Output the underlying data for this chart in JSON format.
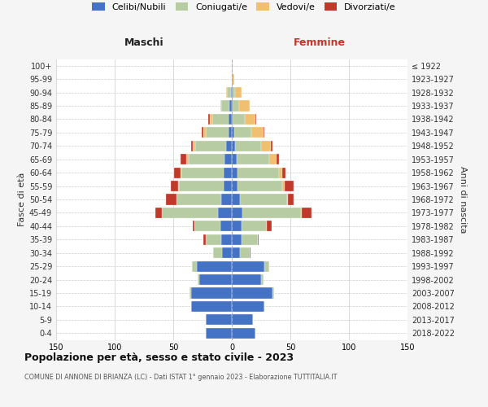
{
  "age_groups": [
    "0-4",
    "5-9",
    "10-14",
    "15-19",
    "20-24",
    "25-29",
    "30-34",
    "35-39",
    "40-44",
    "45-49",
    "50-54",
    "55-59",
    "60-64",
    "65-69",
    "70-74",
    "75-79",
    "80-84",
    "85-89",
    "90-94",
    "95-99",
    "100+"
  ],
  "birth_years": [
    "2018-2022",
    "2013-2017",
    "2008-2012",
    "2003-2007",
    "1998-2002",
    "1993-1997",
    "1988-1992",
    "1983-1987",
    "1978-1982",
    "1973-1977",
    "1968-1972",
    "1963-1967",
    "1958-1962",
    "1953-1957",
    "1948-1952",
    "1943-1947",
    "1938-1942",
    "1933-1937",
    "1928-1932",
    "1923-1927",
    "≤ 1922"
  ],
  "colors": {
    "single": "#4472c4",
    "married": "#b8cca4",
    "widowed": "#f0c070",
    "divorced": "#c0392b"
  },
  "male": {
    "single": [
      22,
      22,
      35,
      35,
      28,
      30,
      8,
      9,
      10,
      12,
      9,
      7,
      7,
      6,
      5,
      3,
      3,
      2,
      1,
      0,
      0
    ],
    "married": [
      0,
      0,
      0,
      1,
      1,
      4,
      8,
      13,
      22,
      48,
      38,
      38,
      36,
      31,
      26,
      19,
      14,
      7,
      3,
      0,
      0
    ],
    "widowed": [
      0,
      0,
      0,
      0,
      0,
      0,
      0,
      0,
      0,
      0,
      0,
      1,
      1,
      2,
      2,
      2,
      2,
      1,
      1,
      0,
      0
    ],
    "divorced": [
      0,
      0,
      0,
      0,
      0,
      0,
      0,
      2,
      1,
      5,
      9,
      6,
      5,
      5,
      2,
      2,
      1,
      0,
      0,
      0,
      0
    ]
  },
  "female": {
    "single": [
      20,
      18,
      28,
      35,
      25,
      28,
      7,
      8,
      8,
      9,
      7,
      5,
      5,
      4,
      3,
      2,
      1,
      1,
      1,
      0,
      0
    ],
    "married": [
      0,
      0,
      0,
      1,
      2,
      4,
      8,
      14,
      22,
      50,
      40,
      38,
      35,
      28,
      22,
      15,
      10,
      5,
      2,
      0,
      0
    ],
    "widowed": [
      0,
      0,
      0,
      0,
      0,
      0,
      0,
      0,
      0,
      1,
      1,
      2,
      3,
      6,
      8,
      10,
      9,
      9,
      5,
      2,
      1
    ],
    "divorced": [
      0,
      0,
      0,
      0,
      0,
      0,
      1,
      1,
      4,
      8,
      5,
      8,
      3,
      2,
      2,
      1,
      1,
      0,
      0,
      0,
      0
    ]
  },
  "xlim": 150,
  "title": "Popolazione per età, sesso e stato civile - 2023",
  "subtitle": "COMUNE DI ANNONE DI BRIANZA (LC) - Dati ISTAT 1° gennaio 2023 - Elaborazione TUTTITALIA.IT",
  "xlabel_left": "Maschi",
  "xlabel_right": "Femmine",
  "ylabel_left": "Fasce di età",
  "ylabel_right": "Anni di nascita",
  "legend_labels": [
    "Celibi/Nubili",
    "Coniugati/e",
    "Vedovi/e",
    "Divorziati/e"
  ],
  "bg_color": "#f5f5f5",
  "plot_bg": "#ffffff"
}
